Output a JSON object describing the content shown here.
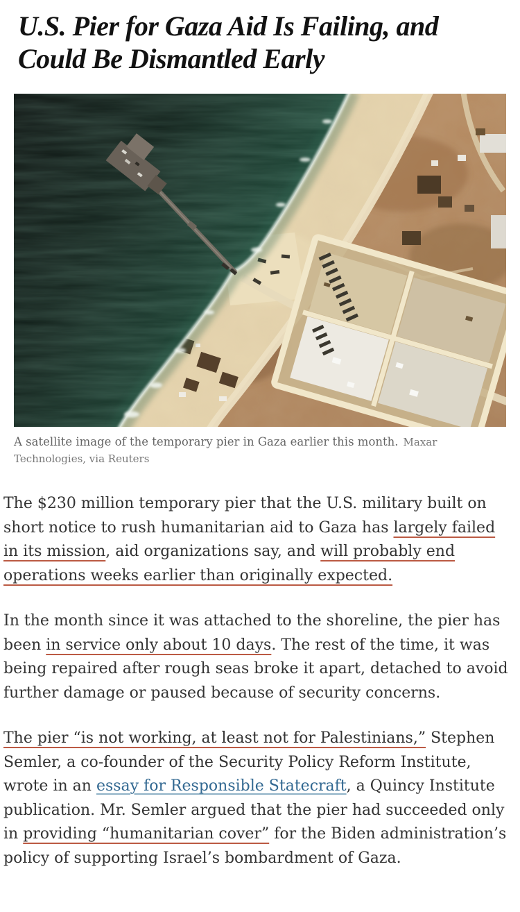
{
  "article": {
    "headline": "U.S. Pier for Gaza Aid Is Failing, and Could Be Dismantled Early",
    "figure": {
      "caption": "A satellite image of the temporary pier in Gaza earlier this month.",
      "credit": "Maxar Technologies, via Reuters"
    },
    "paragraphs": [
      {
        "segments": [
          {
            "type": "plain",
            "text": "The $230 million temporary pier that the U.S. military built on short notice to rush humanitarian aid to Gaza has "
          },
          {
            "type": "red-link",
            "text": "largely failed in its mission"
          },
          {
            "type": "plain",
            "text": ", aid organizations say, and "
          },
          {
            "type": "red-link",
            "text": "will probably end operations weeks earlier than originally expected."
          }
        ]
      },
      {
        "segments": [
          {
            "type": "plain",
            "text": "In the month since it was attached to the shoreline, the pier has been "
          },
          {
            "type": "red-link",
            "text": "in service only about 10 days"
          },
          {
            "type": "plain",
            "text": ". The rest of the time, it was being repaired after rough seas broke it apart, detached to avoid further damage or paused because of security concerns."
          }
        ]
      },
      {
        "segments": [
          {
            "type": "red-link",
            "text": "The pier “is not working, at least not for Palestinians,”"
          },
          {
            "type": "plain",
            "text": " Stephen Semler, a co-founder of the Security Policy Reform Institute, wrote in an "
          },
          {
            "type": "blue-link",
            "text": "essay for Responsible Statecraft"
          },
          {
            "type": "plain",
            "text": ", a Quincy Institute publication. Mr. Semler argued that the pier had succeeded only in "
          },
          {
            "type": "red-link",
            "text": "providing “humanitarian cover”"
          },
          {
            "type": "plain",
            "text": " for the Biden administration’s policy of supporting Israel’s bombardment of Gaza."
          }
        ]
      }
    ]
  },
  "colors": {
    "headline_text": "#121212",
    "body_text": "#333333",
    "caption_text": "#666666",
    "credit_text": "#777777",
    "link_blue": "#326891",
    "link_blue_underline": "#8fb2c6",
    "link_underline_red": "#bb5a43"
  }
}
